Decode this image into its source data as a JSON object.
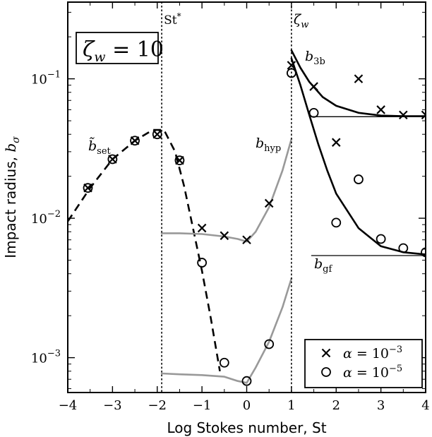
{
  "chart_data": {
    "type": "scatter",
    "xlabel": "Log Stokes number, St",
    "ylabel_text": "Impact radius, ",
    "ylabel_symbol": "b",
    "ylabel_sub": "σ",
    "xlim": [
      -4,
      4
    ],
    "ylim_log10": [
      -3.25,
      -0.45
    ],
    "y_log_scale": true,
    "x_ticks": [
      -4,
      -3,
      -2,
      -1,
      0,
      1,
      2,
      3,
      4
    ],
    "x_tick_labels": [
      "−4",
      "−3",
      "−2",
      "−1",
      "0",
      "1",
      "2",
      "3",
      "4"
    ],
    "y_ticks": [
      0.001,
      0.01,
      0.1
    ],
    "y_tick_bases": [
      "10",
      "10",
      "10"
    ],
    "y_tick_exps": [
      "−3",
      "−2",
      "−1"
    ],
    "grid": false,
    "legend_position": "bottom-right",
    "zeta_box": {
      "symbol": "ζ",
      "sub": "w",
      "rest": " = 10"
    },
    "vlines": [
      {
        "x": -1.9,
        "label": "St",
        "label_sup": "*"
      },
      {
        "x": 1.0,
        "label": "ζ",
        "label_sub": "w"
      }
    ],
    "curve_labels": {
      "b_set": {
        "main": "b̃",
        "sub": "set"
      },
      "b_hyp": {
        "main": "b",
        "sub": "hyp"
      },
      "b_3b": {
        "main": "b",
        "sub": "3b"
      },
      "b_gf": {
        "main": "b",
        "sub": "gf"
      }
    },
    "series": [
      {
        "name": "α = 10",
        "name_exp": "−3",
        "marker": "x",
        "points": [
          [
            -3.55,
            0.0165
          ],
          [
            -3.0,
            0.0265
          ],
          [
            -2.5,
            0.036
          ],
          [
            -2.0,
            0.04
          ],
          [
            -1.5,
            0.026
          ],
          [
            -1.0,
            0.0085
          ],
          [
            -0.5,
            0.0075
          ],
          [
            0.0,
            0.007
          ],
          [
            0.5,
            0.0128
          ],
          [
            1.0,
            0.125
          ],
          [
            1.5,
            0.088
          ],
          [
            2.0,
            0.035
          ],
          [
            2.5,
            0.1
          ],
          [
            3.0,
            0.06
          ],
          [
            3.5,
            0.055
          ],
          [
            4.0,
            0.055
          ]
        ]
      },
      {
        "name": "α = 10",
        "name_exp": "−5",
        "marker": "o",
        "points": [
          [
            -3.55,
            0.0165
          ],
          [
            -3.0,
            0.0265
          ],
          [
            -2.5,
            0.036
          ],
          [
            -2.0,
            0.04
          ],
          [
            -1.5,
            0.026
          ],
          [
            -1.0,
            0.0048
          ],
          [
            -0.5,
            0.00092
          ],
          [
            0.0,
            0.00068
          ],
          [
            0.5,
            0.00125
          ],
          [
            1.0,
            0.11
          ],
          [
            1.5,
            0.057
          ],
          [
            2.0,
            0.0093
          ],
          [
            2.5,
            0.019
          ],
          [
            3.0,
            0.0071
          ],
          [
            3.5,
            0.0061
          ],
          [
            4.0,
            0.0057
          ]
        ]
      }
    ],
    "lines": [
      {
        "name": "b_set",
        "style": "dashed",
        "color": "#000000",
        "points": [
          [
            -4.0,
            0.0095
          ],
          [
            -3.5,
            0.0165
          ],
          [
            -3.0,
            0.0265
          ],
          [
            -2.5,
            0.036
          ],
          [
            -2.1,
            0.043
          ],
          [
            -1.85,
            0.043
          ],
          [
            -1.6,
            0.03
          ],
          [
            -1.4,
            0.017
          ],
          [
            -1.2,
            0.0085
          ],
          [
            -1.0,
            0.0042
          ],
          [
            -0.8,
            0.0019
          ],
          [
            -0.6,
            0.0008
          ]
        ]
      },
      {
        "name": "b_hyp_upper",
        "style": "solid",
        "color": "#999999",
        "points": [
          [
            -1.9,
            0.0078
          ],
          [
            -1.5,
            0.0078
          ],
          [
            -1.0,
            0.0077
          ],
          [
            -0.5,
            0.0074
          ],
          [
            -0.2,
            0.0071
          ],
          [
            0.0,
            0.0068
          ],
          [
            0.2,
            0.008
          ],
          [
            0.5,
            0.012
          ],
          [
            0.8,
            0.022
          ],
          [
            1.0,
            0.037
          ]
        ]
      },
      {
        "name": "b_hyp_lower",
        "style": "solid",
        "color": "#999999",
        "points": [
          [
            -1.9,
            0.00077
          ],
          [
            -1.5,
            0.00076
          ],
          [
            -1.0,
            0.00075
          ],
          [
            -0.5,
            0.00073
          ],
          [
            -0.2,
            0.00068
          ],
          [
            0.0,
            0.00066
          ],
          [
            0.2,
            0.00085
          ],
          [
            0.5,
            0.0013
          ],
          [
            0.8,
            0.0023
          ],
          [
            1.0,
            0.0037
          ]
        ]
      },
      {
        "name": "b_3b",
        "style": "solid",
        "color": "#000000",
        "points": [
          [
            1.0,
            0.16
          ],
          [
            1.2,
            0.12
          ],
          [
            1.4,
            0.095
          ],
          [
            1.7,
            0.074
          ],
          [
            2.0,
            0.064
          ],
          [
            2.5,
            0.057
          ],
          [
            3.0,
            0.0545
          ],
          [
            3.5,
            0.054
          ],
          [
            4.0,
            0.054
          ]
        ]
      },
      {
        "name": "b_gf",
        "style": "solid",
        "color": "#000000",
        "points": [
          [
            1.0,
            0.14
          ],
          [
            1.2,
            0.09
          ],
          [
            1.4,
            0.055
          ],
          [
            1.6,
            0.034
          ],
          [
            1.8,
            0.022
          ],
          [
            2.0,
            0.015
          ],
          [
            2.5,
            0.0085
          ],
          [
            3.0,
            0.0063
          ],
          [
            3.5,
            0.0057
          ],
          [
            4.0,
            0.0055
          ]
        ]
      },
      {
        "name": "b_3b_asymptote",
        "style": "solid",
        "color": "#000000",
        "thin": true,
        "points": [
          [
            1.45,
            0.0535
          ],
          [
            4.0,
            0.0535
          ]
        ]
      },
      {
        "name": "b_gf_asymptote",
        "style": "solid",
        "color": "#000000",
        "thin": true,
        "points": [
          [
            1.45,
            0.0054
          ],
          [
            4.0,
            0.0054
          ]
        ]
      }
    ]
  }
}
